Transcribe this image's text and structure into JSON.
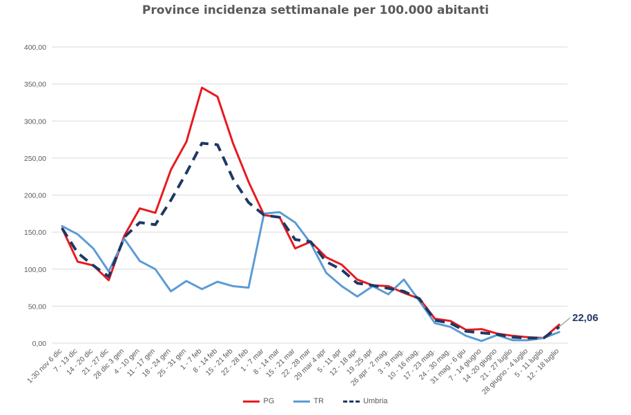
{
  "chart_data": {
    "type": "line",
    "title": "Province incidenza settimanale per 100.000 abitanti",
    "xlabel": "",
    "ylabel": "",
    "ylim": [
      0,
      400
    ],
    "yticks": [
      "0,00",
      "50,00",
      "100,00",
      "150,00",
      "200,00",
      "250,00",
      "300,00",
      "350,00",
      "400,00"
    ],
    "grid": true,
    "legend_position": "bottom",
    "categories": [
      "1-30 nov 6 dic",
      "7 - 13 dic",
      "14 - 20 dic",
      "21 - 27 dic",
      "28 dic 3 gen",
      "4 - 10 gen",
      "11 - 17 gen",
      "18 - 24 gen",
      "25 - 31 gen",
      "1 - 7 feb",
      "8 - 14 feb",
      "15 - 21 feb",
      "22 - 28 feb",
      "1 - 7 mar",
      "8 - 14 mar",
      "15 - 21 mar",
      "22 - 28 mar",
      "29 mar 4 apr",
      "5 - 11 apr",
      "12 - 18 apr",
      "19 -25 apr",
      "26 apr - 2 mag.",
      "3 - 9 mag.",
      "10 - 16 mag.",
      "17 - 23 mag.",
      "24 - 30 mag.",
      "31 mag - 6 giu",
      "7 - 14 giugno",
      "14 -20 giugno",
      "21 - 27 luglio",
      "28 giugno - 4 luglio",
      "5 - 11 luglio",
      "12 - 18 luglio"
    ],
    "series": [
      {
        "name": "PG",
        "color": "#e8191f",
        "style": "solid",
        "values": [
          155,
          110,
          105,
          85,
          145,
          182,
          176,
          234,
          272,
          345,
          333,
          270,
          218,
          173,
          170,
          128,
          137,
          116,
          106,
          86,
          78,
          77,
          68,
          60,
          33,
          30,
          18,
          19,
          13,
          10,
          8,
          7,
          25
        ]
      },
      {
        "name": "TR",
        "color": "#5b9bd5",
        "style": "solid",
        "values": [
          158,
          147,
          128,
          97,
          141,
          111,
          100,
          70,
          84,
          73,
          83,
          77,
          75,
          175,
          177,
          163,
          135,
          95,
          77,
          63,
          77,
          66,
          86,
          57,
          27,
          22,
          10,
          3,
          11,
          4,
          4,
          7,
          15
        ]
      },
      {
        "name": "Umbria",
        "color": "#1f3864",
        "style": "dashed",
        "values": [
          155,
          122,
          105,
          90,
          143,
          163,
          160,
          193,
          230,
          270,
          268,
          222,
          190,
          173,
          170,
          140,
          137,
          110,
          99,
          81,
          78,
          74,
          70,
          60,
          31,
          27,
          16,
          14,
          12,
          8,
          7,
          7,
          22
        ]
      }
    ],
    "annotation": "22,06"
  }
}
